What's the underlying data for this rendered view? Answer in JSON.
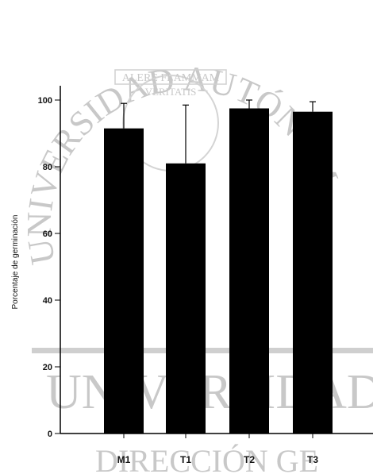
{
  "watermark": {
    "university_arc": "UNIVERSIDAD AUTÓNOMA DE NUEVO LEÓN",
    "motto_top": "ALERE FLAMMAM",
    "motto_bottom": "VERITATIS",
    "band_text": "UNIVERSIDAD AU",
    "bottom_text": "DIRECCIÓN GE"
  },
  "colors": {
    "bar_fill": "#000000",
    "axis": "#000000",
    "watermark": "#c8c8c8"
  },
  "chart_data": {
    "type": "bar",
    "title": "",
    "xlabel": "",
    "ylabel": "Porcentaje de germinación",
    "categories": [
      "M1",
      "T1",
      "T2",
      "T3"
    ],
    "values": [
      91.5,
      81,
      97.5,
      96.5
    ],
    "error_upper": [
      7.5,
      17.5,
      2.5,
      3.0
    ],
    "ylim": [
      0,
      100
    ],
    "yticks": [
      0,
      20,
      40,
      60,
      80,
      100
    ],
    "grid": false,
    "legend": "none"
  }
}
